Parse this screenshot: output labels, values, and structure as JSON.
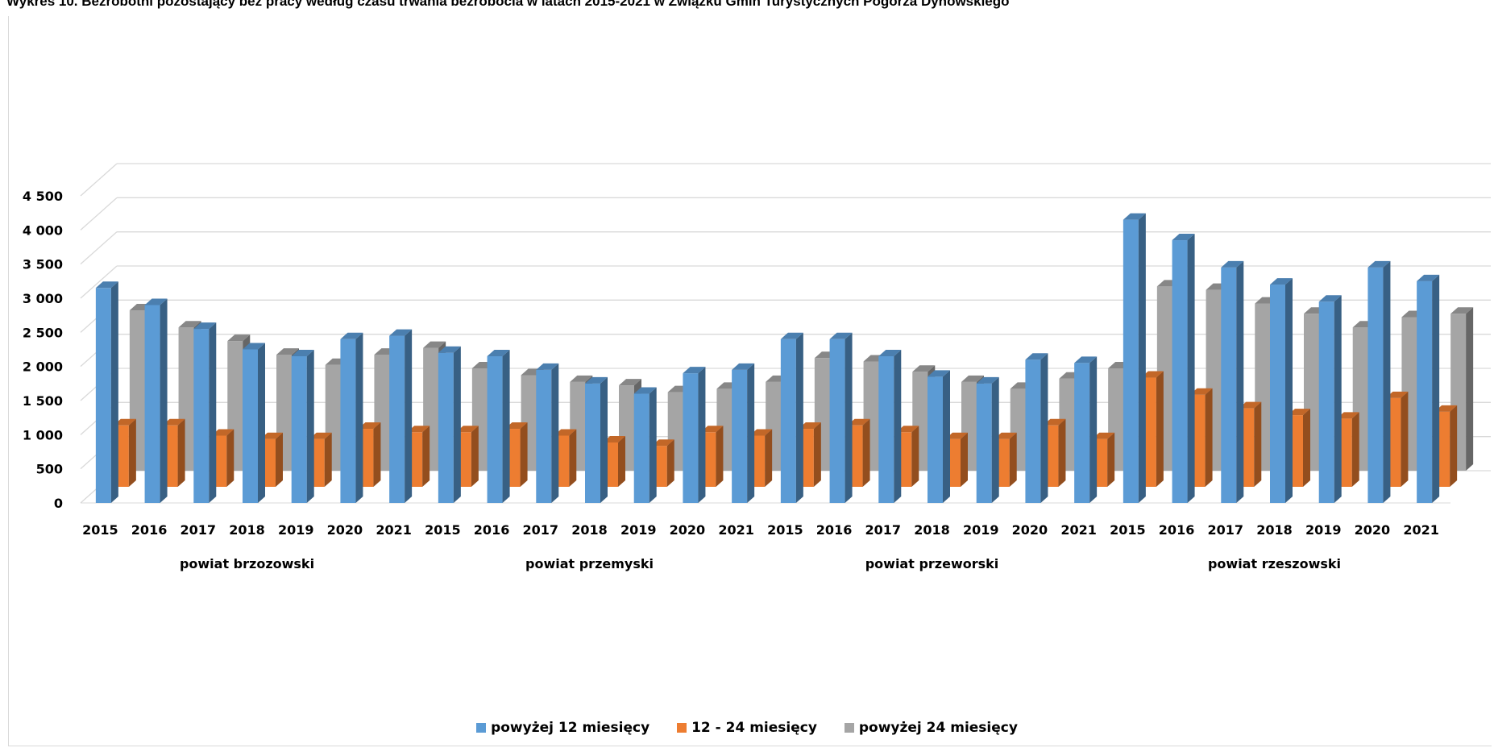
{
  "chart_data": {
    "type": "bar",
    "title": "Wykres 10. Bezrobotni pozostający bez pracy według czasu trwania bezrobocia w latach 2015-2021 w Związku Gmin Turystycznych Pogórza Dynowskiego",
    "ylim": [
      0,
      4500
    ],
    "y_ticks": [
      "0",
      "500",
      "1 000",
      "1 500",
      "2 000",
      "2 500",
      "3 000",
      "3 500",
      "4 000",
      "4 500"
    ],
    "grid": true,
    "legend_position": "bottom",
    "groups": [
      "powiat brzozowski",
      "powiat przemyski",
      "powiat przeworski",
      "powiat rzeszowski"
    ],
    "years": [
      "2015",
      "2016",
      "2017",
      "2018",
      "2019",
      "2020",
      "2021"
    ],
    "series": [
      {
        "name": "powyżej 12 miesięcy",
        "color": "#5b9bd5",
        "values": [
          3150,
          2900,
          2550,
          2250,
          2150,
          2400,
          2450,
          2200,
          2150,
          1950,
          1750,
          1600,
          1900,
          1950,
          2400,
          2400,
          2150,
          1850,
          1750,
          2100,
          2050,
          4150,
          3850,
          3450,
          3200,
          2950,
          3450,
          3250
        ]
      },
      {
        "name": "12 - 24 miesięcy",
        "color": "#ed7d31",
        "values": [
          900,
          900,
          750,
          700,
          700,
          850,
          800,
          800,
          850,
          750,
          650,
          600,
          800,
          750,
          850,
          900,
          800,
          700,
          700,
          900,
          700,
          1600,
          1350,
          1150,
          1050,
          1000,
          1300,
          1100
        ]
      },
      {
        "name": "powyżej 24 miesięcy",
        "color": "#a5a5a5",
        "values": [
          2350,
          2100,
          1900,
          1700,
          1550,
          1700,
          1800,
          1500,
          1400,
          1300,
          1250,
          1150,
          1200,
          1300,
          1650,
          1600,
          1450,
          1300,
          1200,
          1350,
          1500,
          2700,
          2650,
          2450,
          2300,
          2100,
          2250,
          2300
        ]
      }
    ]
  }
}
